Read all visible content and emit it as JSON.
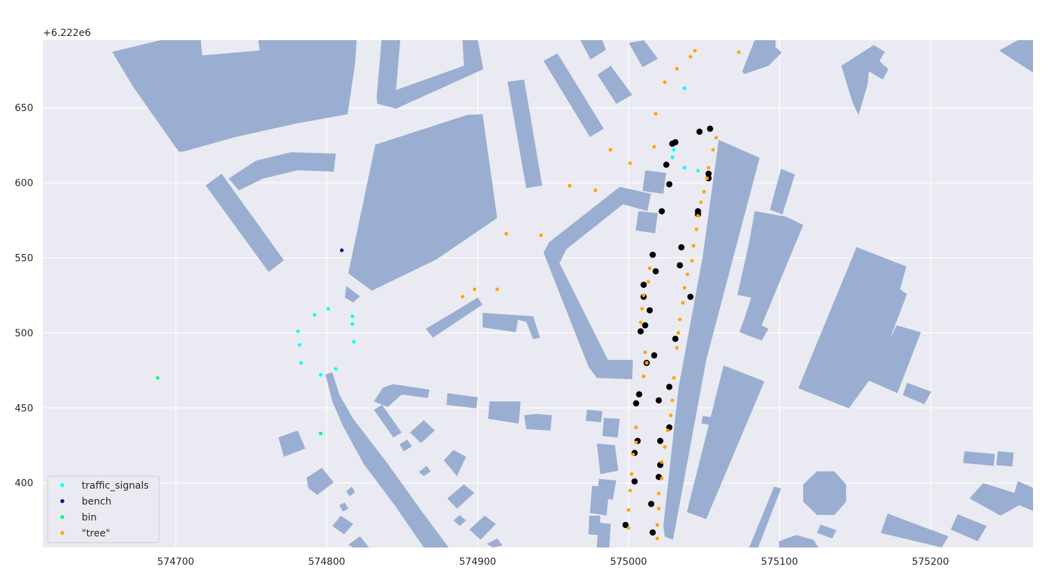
{
  "chart_data": {
    "type": "scatter",
    "title": "",
    "xlabel": "",
    "ylabel": "",
    "y_offset_label": "+6.222e6",
    "xlim": [
      574612,
      575268
    ],
    "ylim": [
      6222357,
      6222695
    ],
    "x_ticks": [
      "574700",
      "574800",
      "574900",
      "575000",
      "575100",
      "575200"
    ],
    "x_tick_values": [
      574700,
      574800,
      574900,
      575000,
      575100,
      575200
    ],
    "y_ticks": [
      "400",
      "450",
      "500",
      "550",
      "600",
      "650"
    ],
    "y_tick_values": [
      6222400,
      6222450,
      6222500,
      6222550,
      6222600,
      6222650
    ],
    "grid": true,
    "background": "#eaeaf2",
    "building_color": "#9aaed1",
    "legend_position": "lower-left",
    "series": [
      {
        "name": "traffic_signals",
        "color": "#00ffff",
        "points": [
          [
            574801,
            6222516
          ],
          [
            574792,
            6222512
          ],
          [
            574817,
            6222511
          ],
          [
            574817,
            6222506
          ],
          [
            574781,
            6222501
          ],
          [
            574782,
            6222492
          ],
          [
            574818,
            6222494
          ],
          [
            574783,
            6222480
          ],
          [
            574806,
            6222476
          ],
          [
            574796,
            6222472
          ],
          [
            575037,
            6222663
          ],
          [
            575030,
            6222622
          ],
          [
            575029,
            6222617
          ],
          [
            575037,
            6222610
          ],
          [
            575046,
            6222608
          ]
        ]
      },
      {
        "name": "bench",
        "color": "#00008b",
        "points": [
          [
            574810,
            6222555
          ]
        ]
      },
      {
        "name": "bin",
        "color": "#00ff7f",
        "points": [
          [
            574688,
            6222470
          ],
          [
            574796,
            6222433
          ]
        ]
      },
      {
        "name": "\"tree\"",
        "color": "#ffa500",
        "points": [
          [
            575044,
            6222688
          ],
          [
            575073,
            6222687
          ],
          [
            575041,
            6222684
          ],
          [
            575032,
            6222676
          ],
          [
            575024,
            6222667
          ],
          [
            575018,
            6222646
          ],
          [
            575058,
            6222630
          ],
          [
            574988,
            6222622
          ],
          [
            575017,
            6222624
          ],
          [
            575056,
            6222622
          ],
          [
            575001,
            6222613
          ],
          [
            575053,
            6222610
          ],
          [
            575052,
            6222603
          ],
          [
            574961,
            6222598
          ],
          [
            574978,
            6222595
          ],
          [
            575050,
            6222594
          ],
          [
            575048,
            6222587
          ],
          [
            575046,
            6222578
          ],
          [
            574919,
            6222566
          ],
          [
            574942,
            6222565
          ],
          [
            575045,
            6222569
          ],
          [
            575043,
            6222558
          ],
          [
            575042,
            6222548
          ],
          [
            575014,
            6222543
          ],
          [
            575039,
            6222539
          ],
          [
            575013,
            6222534
          ],
          [
            574898,
            6222529
          ],
          [
            574913,
            6222529
          ],
          [
            575037,
            6222530
          ],
          [
            574890,
            6222524
          ],
          [
            575010,
            6222525
          ],
          [
            575036,
            6222520
          ],
          [
            575009,
            6222516
          ],
          [
            575034,
            6222509
          ],
          [
            575008,
            6222507
          ],
          [
            575033,
            6222500
          ],
          [
            575032,
            6222490
          ],
          [
            575011,
            6222487
          ],
          [
            575012,
            6222480
          ],
          [
            575010,
            6222471
          ],
          [
            575030,
            6222470
          ],
          [
            575029,
            6222455
          ],
          [
            575028,
            6222445
          ],
          [
            575005,
            6222437
          ],
          [
            575026,
            6222435
          ],
          [
            575005,
            6222427
          ],
          [
            575024,
            6222424
          ],
          [
            575003,
            6222419
          ],
          [
            575022,
            6222414
          ],
          [
            575002,
            6222406
          ],
          [
            575022,
            6222403
          ],
          [
            575001,
            6222395
          ],
          [
            575020,
            6222393
          ],
          [
            575020,
            6222383
          ],
          [
            575000,
            6222382
          ],
          [
            575019,
            6222372
          ],
          [
            575000,
            6222370
          ],
          [
            575019,
            6222363
          ]
        ]
      }
    ],
    "unlabeled_points": {
      "color": "#000000",
      "points": [
        [
          575054,
          6222636
        ],
        [
          575047,
          6222634
        ],
        [
          575031,
          6222627
        ],
        [
          575029,
          6222626
        ],
        [
          575025,
          6222612
        ],
        [
          575053,
          6222606
        ],
        [
          575053,
          6222603
        ],
        [
          575027,
          6222599
        ],
        [
          575022,
          6222581
        ],
        [
          575046,
          6222581
        ],
        [
          575046,
          6222579
        ],
        [
          575035,
          6222557
        ],
        [
          575016,
          6222552
        ],
        [
          575034,
          6222545
        ],
        [
          575018,
          6222541
        ],
        [
          575010,
          6222532
        ],
        [
          575041,
          6222524
        ],
        [
          575010,
          6222524
        ],
        [
          575014,
          6222515
        ],
        [
          575011,
          6222505
        ],
        [
          575008,
          6222501
        ],
        [
          575031,
          6222496
        ],
        [
          575017,
          6222485
        ],
        [
          575012,
          6222480
        ],
        [
          575027,
          6222464
        ],
        [
          575007,
          6222459
        ],
        [
          575020,
          6222455
        ],
        [
          575005,
          6222453
        ],
        [
          575027,
          6222437
        ],
        [
          575006,
          6222428
        ],
        [
          575021,
          6222428
        ],
        [
          575004,
          6222420
        ],
        [
          575021,
          6222412
        ],
        [
          575020,
          6222404
        ],
        [
          575004,
          6222401
        ],
        [
          575015,
          6222386
        ],
        [
          574998,
          6222372
        ],
        [
          575016,
          6222367
        ]
      ]
    }
  }
}
